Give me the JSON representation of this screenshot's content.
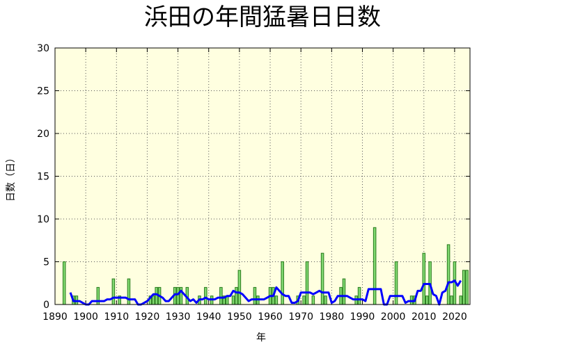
{
  "chart_data": {
    "type": "bar",
    "title": "浜田の年間猛暑日日数",
    "xlabel": "年",
    "ylabel": "日数（日）",
    "xlim": [
      1890,
      2025
    ],
    "xticks": [
      1890,
      1900,
      1910,
      1920,
      1930,
      1940,
      1950,
      1960,
      1970,
      1980,
      1990,
      2000,
      2010,
      2020
    ],
    "ylim": [
      0,
      30
    ],
    "yticks": [
      0,
      5,
      10,
      15,
      20,
      25,
      30
    ],
    "grid": true,
    "background": "#ffffe0",
    "series": [
      {
        "type": "bar",
        "color": "#80d870",
        "edge": "#2a7a1e",
        "x": [
          1893,
          1894,
          1895,
          1896,
          1897,
          1898,
          1899,
          1900,
          1901,
          1902,
          1903,
          1904,
          1905,
          1906,
          1907,
          1908,
          1909,
          1910,
          1911,
          1912,
          1913,
          1914,
          1915,
          1916,
          1917,
          1918,
          1919,
          1920,
          1921,
          1922,
          1923,
          1924,
          1925,
          1926,
          1927,
          1928,
          1929,
          1930,
          1931,
          1932,
          1933,
          1934,
          1935,
          1936,
          1937,
          1938,
          1939,
          1940,
          1941,
          1942,
          1943,
          1944,
          1945,
          1946,
          1947,
          1948,
          1949,
          1950,
          1951,
          1952,
          1953,
          1954,
          1955,
          1956,
          1957,
          1958,
          1959,
          1960,
          1961,
          1962,
          1963,
          1964,
          1965,
          1966,
          1967,
          1968,
          1969,
          1970,
          1971,
          1972,
          1973,
          1974,
          1975,
          1976,
          1977,
          1978,
          1979,
          1980,
          1981,
          1982,
          1983,
          1984,
          1985,
          1986,
          1987,
          1988,
          1989,
          1990,
          1991,
          1992,
          1993,
          1994,
          1995,
          1996,
          1997,
          1998,
          1999,
          2000,
          2001,
          2002,
          2003,
          2004,
          2005,
          2006,
          2007,
          2008,
          2009,
          2010,
          2011,
          2012,
          2013,
          2014,
          2015,
          2016,
          2017,
          2018,
          2019,
          2020,
          2021,
          2022,
          2023,
          2024
        ],
        "values": [
          5,
          0,
          0,
          1,
          1,
          0,
          0,
          0,
          0,
          0,
          0,
          2,
          0,
          0,
          0,
          0,
          3,
          0,
          1,
          0,
          0,
          3,
          0,
          0,
          0,
          0,
          0,
          0,
          1,
          1,
          2,
          2,
          0,
          0,
          0,
          0,
          2,
          2,
          2,
          0,
          2,
          0,
          0,
          0,
          1,
          0,
          2,
          0,
          1,
          0,
          0,
          2,
          1,
          1,
          0,
          1,
          2,
          4,
          0,
          0,
          0,
          0,
          2,
          1,
          0,
          0,
          0,
          2,
          2,
          1,
          0,
          5,
          0,
          0,
          0,
          0,
          1,
          0,
          1,
          5,
          0,
          1,
          0,
          0,
          6,
          1,
          0,
          0,
          0,
          0,
          2,
          3,
          0,
          0,
          0,
          1,
          2,
          0,
          0,
          0,
          0,
          9,
          0,
          0,
          0,
          0,
          0,
          0,
          5,
          0,
          0,
          0,
          0,
          1,
          1,
          0,
          0,
          6,
          1,
          5,
          0,
          0,
          0,
          0,
          0,
          7,
          1,
          5,
          0,
          1,
          4,
          4
        ]
      },
      {
        "type": "line",
        "color": "#0000ff",
        "x": [
          1895,
          1896,
          1897,
          1898,
          1899,
          1900,
          1901,
          1902,
          1903,
          1904,
          1905,
          1906,
          1907,
          1908,
          1909,
          1910,
          1911,
          1912,
          1913,
          1914,
          1915,
          1916,
          1917,
          1918,
          1919,
          1920,
          1921,
          1922,
          1923,
          1924,
          1925,
          1926,
          1927,
          1928,
          1929,
          1930,
          1931,
          1932,
          1933,
          1934,
          1935,
          1936,
          1937,
          1938,
          1939,
          1940,
          1941,
          1942,
          1943,
          1944,
          1945,
          1946,
          1947,
          1948,
          1949,
          1950,
          1951,
          1952,
          1953,
          1954,
          1955,
          1956,
          1957,
          1958,
          1959,
          1960,
          1961,
          1962,
          1963,
          1964,
          1965,
          1966,
          1967,
          1968,
          1969,
          1970,
          1971,
          1972,
          1973,
          1974,
          1975,
          1976,
          1977,
          1978,
          1979,
          1980,
          1981,
          1982,
          1983,
          1984,
          1985,
          1986,
          1987,
          1988,
          1989,
          1990,
          1991,
          1992,
          1993,
          1994,
          1995,
          1996,
          1997,
          1998,
          1999,
          2000,
          2001,
          2002,
          2003,
          2004,
          2005,
          2006,
          2007,
          2008,
          2009,
          2010,
          2011,
          2012,
          2013,
          2014,
          2015,
          2016,
          2017,
          2018,
          2019,
          2020,
          2021,
          2022
        ],
        "values": [
          1.4,
          0.4,
          0.4,
          0.4,
          0.2,
          0,
          0,
          0.4,
          0.4,
          0.4,
          0.4,
          0.4,
          0.6,
          0.6,
          0.8,
          0.8,
          0.8,
          0.8,
          0.8,
          0.6,
          0.6,
          0.6,
          0,
          0,
          0.2,
          0.4,
          0.8,
          1.2,
          1.2,
          1.0,
          0.8,
          0.4,
          0.4,
          0.8,
          1.2,
          1.2,
          1.6,
          1.2,
          0.8,
          0.4,
          0.6,
          0.2,
          0.6,
          0.6,
          0.8,
          0.6,
          0.6,
          0.6,
          0.8,
          0.8,
          0.8,
          1.0,
          1.0,
          1.6,
          1.4,
          1.4,
          1.2,
          0.8,
          0.4,
          0.6,
          0.6,
          0.6,
          0.6,
          0.6,
          0.8,
          1.0,
          1.0,
          2.0,
          1.6,
          1.2,
          1.0,
          1.0,
          0.2,
          0.2,
          0.4,
          1.4,
          1.4,
          1.4,
          1.4,
          1.2,
          1.4,
          1.6,
          1.4,
          1.4,
          1.4,
          0.2,
          0.4,
          1.0,
          1.0,
          1.0,
          1.0,
          0.8,
          0.6,
          0.6,
          0.6,
          0.6,
          0.4,
          1.8,
          1.8,
          1.8,
          1.8,
          1.8,
          0,
          0,
          1.0,
          1.0,
          1.0,
          1.0,
          1.0,
          0.2,
          0.4,
          0.4,
          0.4,
          1.6,
          1.6,
          2.4,
          2.4,
          2.4,
          1.2,
          1.0,
          0,
          1.4,
          1.6,
          2.6,
          2.6,
          2.8,
          2.2,
          2.8
        ]
      }
    ]
  }
}
